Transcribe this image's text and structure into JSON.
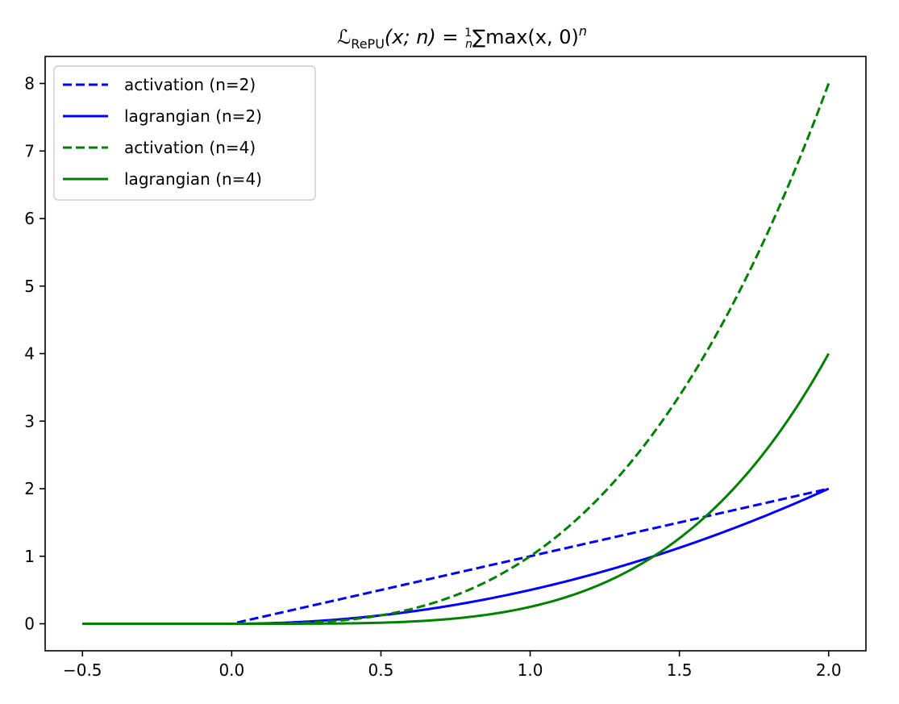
{
  "chart_data": {
    "type": "line",
    "title": {
      "script_l": "ℒ",
      "subscript": "RePU",
      "args": "(x; n) = ",
      "frac_num": "1",
      "frac_den": "n",
      "sum": "∑",
      "body": "max(x, 0)",
      "exponent": "n"
    },
    "xlabel": "",
    "ylabel": "",
    "xlim": [
      -0.625,
      2.125
    ],
    "ylim": [
      -0.4,
      8.4
    ],
    "xticks": [
      -0.5,
      0.0,
      0.5,
      1.0,
      1.5,
      2.0
    ],
    "xtick_labels": [
      "−0.5",
      "0.0",
      "0.5",
      "1.0",
      "1.5",
      "2.0"
    ],
    "yticks": [
      0,
      1,
      2,
      3,
      4,
      5,
      6,
      7,
      8
    ],
    "ytick_labels": [
      "0",
      "1",
      "2",
      "3",
      "4",
      "5",
      "6",
      "7",
      "8"
    ],
    "grid": false,
    "legend_position": "top-left",
    "x_domain": [
      -0.5,
      2.0
    ],
    "series": [
      {
        "name": "activation (n=2)",
        "color": "#0000ff",
        "style": "dashed",
        "formula": "max(x,0)"
      },
      {
        "name": "lagrangian (n=2)",
        "color": "#0000ff",
        "style": "solid",
        "formula": "max(x,0)^2/2"
      },
      {
        "name": "activation (n=4)",
        "color": "#008000",
        "style": "dashed",
        "formula": "max(x,0)^3"
      },
      {
        "name": "lagrangian (n=4)",
        "color": "#008000",
        "style": "solid",
        "formula": "max(x,0)^4/4"
      }
    ]
  }
}
